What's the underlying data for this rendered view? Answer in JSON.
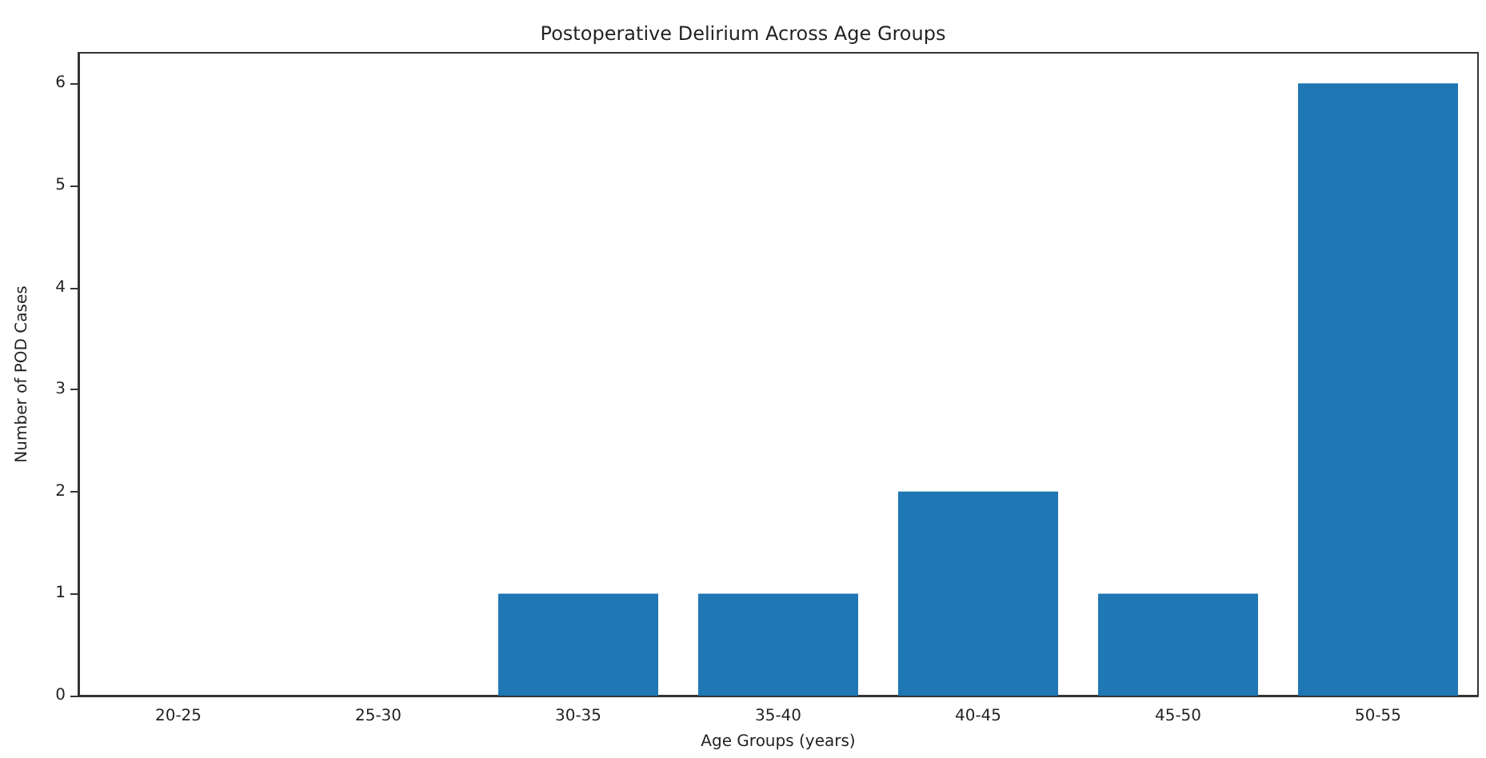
{
  "chart_data": {
    "type": "bar",
    "title": "Postoperative Delirium Across Age Groups",
    "xlabel": "Age Groups (years)",
    "ylabel": "Number of POD Cases",
    "categories": [
      "20-25",
      "25-30",
      "30-35",
      "35-40",
      "40-45",
      "45-50",
      "50-55"
    ],
    "values": [
      0,
      0,
      1,
      1,
      2,
      1,
      6
    ],
    "color": "#1f77b4",
    "ylim": [
      0,
      6.3
    ],
    "yticks": [
      0,
      1,
      2,
      3,
      4,
      5,
      6
    ]
  }
}
